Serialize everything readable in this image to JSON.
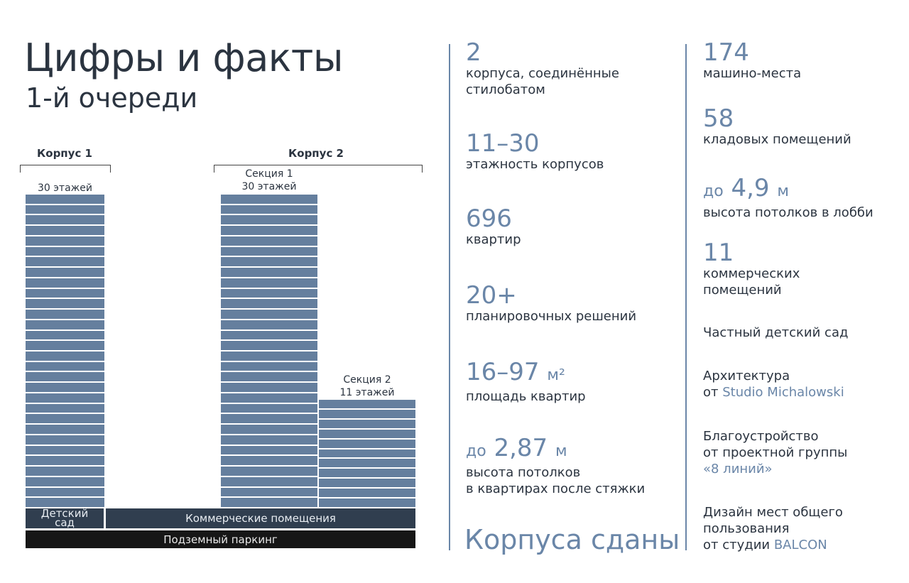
{
  "header": {
    "title": "Цифры и факты",
    "subtitle": "1-й очереди"
  },
  "diagram": {
    "korpus1": {
      "label": "Корпус 1",
      "floors_label": "30 этажей",
      "floors": 30
    },
    "korpus2": {
      "label": "Корпус 2",
      "section1": {
        "label": "Секция 1",
        "floors_label": "30 этажей",
        "floors": 30
      },
      "section2": {
        "label": "Секция 2",
        "floors_label": "11 этажей",
        "floors": 11
      }
    },
    "kindergarten": {
      "line1": "Детский",
      "line2": "сад"
    },
    "commercial": "Коммерческие помещения",
    "parking": "Подземный паркинг"
  },
  "stats_left": [
    {
      "value": "2",
      "lines": [
        "корпуса, соединённые",
        "стилобатом"
      ]
    },
    {
      "value": "11–30",
      "lines": [
        "этажность корпусов"
      ]
    },
    {
      "value": "696",
      "lines": [
        "квартир"
      ]
    },
    {
      "value": "20+",
      "lines": [
        "планировочных решений"
      ]
    },
    {
      "value": "16–97",
      "unit": "м²",
      "lines": [
        "площадь квартир"
      ]
    },
    {
      "prefix": "до",
      "value": "2,87",
      "unit": "м",
      "lines": [
        "высота потолков",
        "в квартирах после стяжки"
      ]
    }
  ],
  "status": "Корпуса сданы",
  "stats_right": [
    {
      "value": "174",
      "lines": [
        "машино-места"
      ]
    },
    {
      "value": "58",
      "lines": [
        "кладовых помещений"
      ]
    },
    {
      "prefix": "до",
      "value": "4,9",
      "unit": "м",
      "lines": [
        "высота потолков в лобби"
      ]
    },
    {
      "value": "11",
      "lines": [
        "коммерческих",
        "помещений"
      ]
    }
  ],
  "facts": {
    "kindergarten": "Частный детский сад",
    "architecture": {
      "line1": "Архитектура",
      "prefix": "от ",
      "accent": "Studio Michalowski"
    },
    "landscape": {
      "line1": "Благоустройство",
      "line2": "от проектной группы",
      "accent": "«8 линий»"
    },
    "design": {
      "line1": "Дизайн мест общего",
      "line2": "пользования",
      "prefix": "от студии ",
      "accent": "BALCON"
    }
  }
}
